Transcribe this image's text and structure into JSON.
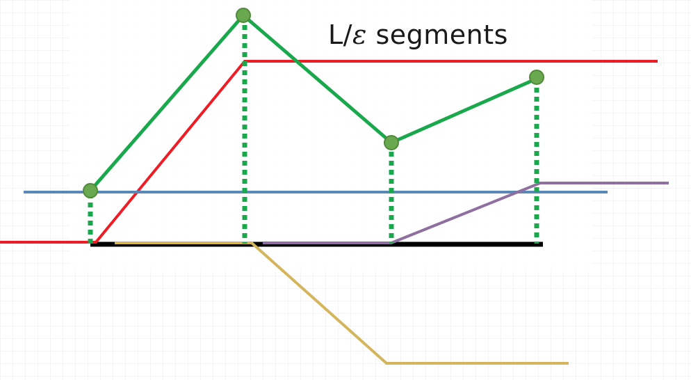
{
  "title": {
    "prefix": "L/",
    "symbol": "ε",
    "suffix": " segments"
  },
  "colors": {
    "green_function": "#19a84b",
    "green_node_fill": "#6aa84f",
    "green_node_stroke": "#4f8a3a",
    "red_hat": "#ee1c25",
    "blue_hline": "#5a88b8",
    "purple_hat": "#8e6fa0",
    "gold_hat": "#d4b55c",
    "black_axis": "#000000",
    "grid": "#e6e6e6"
  },
  "nodes": [
    "node-1",
    "node-2",
    "node-3",
    "node-4"
  ]
}
